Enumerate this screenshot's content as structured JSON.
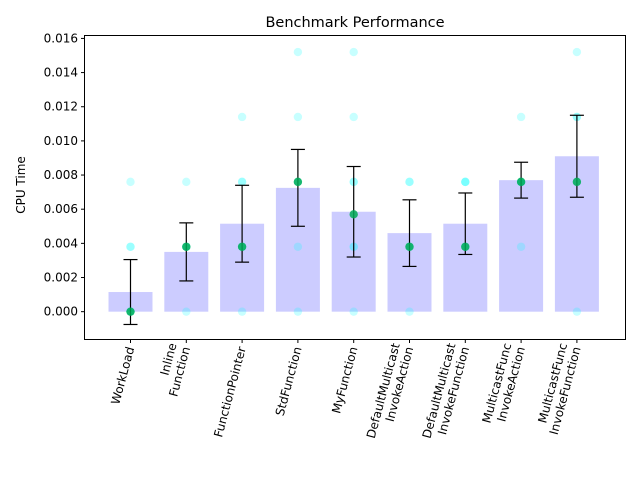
{
  "chart_data": {
    "type": "bar",
    "title": "Benchmark Performance",
    "xlabel": "",
    "ylabel": "CPU Time",
    "ylim": [
      -0.0016,
      0.0162
    ],
    "yticks": [
      "0.000",
      "0.002",
      "0.004",
      "0.006",
      "0.008",
      "0.010",
      "0.012",
      "0.014",
      "0.016"
    ],
    "ytick_values": [
      0,
      0.002,
      0.004,
      0.006,
      0.008,
      0.01,
      0.012,
      0.014,
      0.016
    ],
    "categories": [
      [
        "WorkLoad"
      ],
      [
        "Inline",
        "Function"
      ],
      [
        "FunctionPointer"
      ],
      [
        "StdFunction"
      ],
      [
        "MyFunction"
      ],
      [
        "DefaultMulticast",
        "InvokeAction"
      ],
      [
        "DefaultMulticast",
        "InvokeFunction"
      ],
      [
        "MulticastFunc",
        "InvokeAction"
      ],
      [
        "MulticastFunc",
        "InvokeFunction"
      ]
    ],
    "means": [
      0.00115,
      0.0035,
      0.00515,
      0.00725,
      0.00585,
      0.0046,
      0.00515,
      0.0077,
      0.0091
    ],
    "errors": [
      0.0019,
      0.0017,
      0.00225,
      0.00225,
      0.00265,
      0.00195,
      0.0018,
      0.00105,
      0.0024
    ],
    "medians": [
      0.0,
      0.0038,
      0.0038,
      0.0076,
      0.0057,
      0.0038,
      0.0038,
      0.0076,
      0.0076
    ],
    "samples": [
      [
        0.0,
        0.0,
        0.0,
        0.0038,
        0.0038,
        0.0076
      ],
      [
        0.0,
        0.0038,
        0.0038,
        0.0038,
        0.0076
      ],
      [
        0.0,
        0.0038,
        0.0038,
        0.0076,
        0.0076,
        0.0114
      ],
      [
        0.0,
        0.0038,
        0.0076,
        0.0076,
        0.0114,
        0.0152
      ],
      [
        0.0,
        0.0038,
        0.0038,
        0.0076,
        0.0076,
        0.0114,
        0.0152
      ],
      [
        0.0,
        0.0038,
        0.0038,
        0.0076,
        0.0076
      ],
      [
        0.0038,
        0.0038,
        0.0076,
        0.0076,
        0.0076
      ],
      [
        0.0038,
        0.0076,
        0.0076,
        0.0076,
        0.0114
      ],
      [
        0.0,
        0.0076,
        0.0114,
        0.0114,
        0.0152
      ]
    ],
    "colors": {
      "bar": "#ccccff",
      "sample": "#00ffff",
      "median": "#00aa55",
      "errorbar": "#000000"
    },
    "grid": false,
    "legend": "none"
  }
}
